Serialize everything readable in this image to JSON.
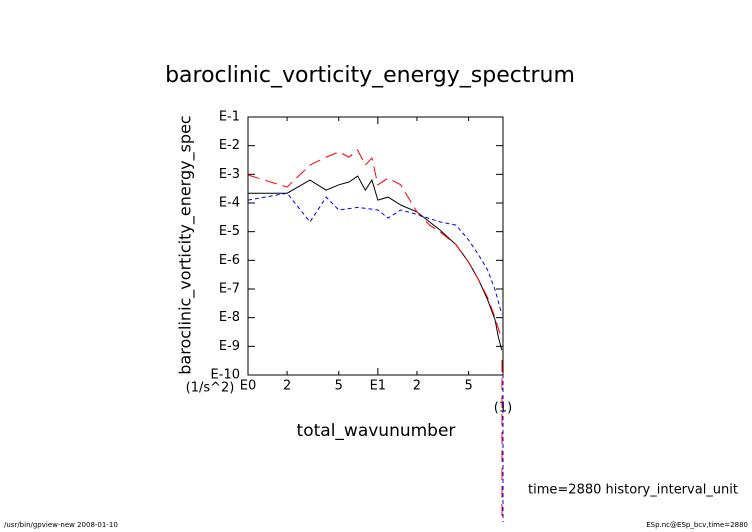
{
  "chart_data": {
    "type": "line",
    "title": "baroclinic_vorticity_energy_spectrum",
    "y_label": "baroclinic_vorticity_energy_spec",
    "y_unit": "(1/s^2)",
    "x_label": "total_wavunumber",
    "x_unit": "(1)",
    "log_x": true,
    "log_y": true,
    "xlim": [
      1,
      92
    ],
    "ylim": [
      1e-10,
      0.1
    ],
    "xticks": [
      {
        "value": 1,
        "label": "E0"
      },
      2,
      5,
      {
        "value": 10,
        "label": "E1"
      },
      2,
      5
    ],
    "xtick_values": [
      1,
      2,
      5,
      10,
      20,
      50
    ],
    "yticks": [
      {
        "value": 0.1,
        "label": "E-1"
      },
      {
        "value": 0.01,
        "label": "E-2"
      },
      {
        "value": 0.001,
        "label": "E-3"
      },
      {
        "value": 0.0001,
        "label": "E-4"
      },
      {
        "value": 1e-05,
        "label": "E-5"
      },
      {
        "value": 1e-06,
        "label": "E-6"
      },
      {
        "value": 1e-07,
        "label": "E-7"
      },
      {
        "value": 1e-08,
        "label": "E-8"
      },
      {
        "value": 1e-09,
        "label": "E-9"
      },
      {
        "value": 1e-10,
        "label": "E-10"
      }
    ],
    "series": [
      {
        "color": "#000000",
        "dash": "none",
        "x": [
          1,
          2,
          3,
          4,
          5,
          6,
          7,
          8,
          9,
          10,
          12,
          15,
          20,
          25,
          30,
          40,
          50,
          60,
          70,
          80,
          85,
          90
        ],
        "values": [
          0.00022,
          0.00022,
          0.00063,
          0.00028,
          0.00043,
          0.00054,
          0.00087,
          0.00028,
          0.00063,
          0.000126,
          0.00016,
          8.5e-05,
          4.9e-05,
          2.2e-05,
          1.15e-05,
          3.5e-06,
          8.7e-07,
          2e-07,
          4.2e-08,
          8.3e-09,
          2e-09,
          7.4e-10
        ]
      },
      {
        "color": "#ff0000",
        "dash": "12,6",
        "x": [
          1,
          2,
          3,
          4,
          5,
          6,
          7,
          8,
          9,
          10,
          12,
          15,
          20,
          25,
          30,
          40,
          50,
          60,
          70,
          80,
          90
        ],
        "values": [
          0.00095,
          0.00036,
          0.0021,
          0.004,
          0.006,
          0.004,
          0.007,
          0.0021,
          0.0037,
          0.00043,
          0.00074,
          0.00043,
          4.9e-05,
          1.7e-05,
          1e-05,
          3.5e-06,
          8.7e-07,
          2e-07,
          5e-08,
          1e-08,
          1.7e-09
        ]
      },
      {
        "color": "#0000ff",
        "dash": "4,3",
        "x": [
          1,
          2,
          3,
          4,
          5,
          7,
          10,
          12,
          15,
          20,
          30,
          40,
          50,
          60,
          70,
          80,
          90
        ],
        "values": [
          0.000126,
          0.00022,
          2.2e-05,
          0.00016,
          5.7e-05,
          7e-05,
          5.7e-05,
          3e-05,
          5.7e-05,
          4e-05,
          2.2e-05,
          1.7e-05,
          5.1e-06,
          1.5e-06,
          4.6e-07,
          9.3e-08,
          1.3e-08
        ]
      }
    ],
    "time_note": "time=2880 history_interval_unit",
    "footer_left": "/usr/bin/gpview-new  2008-01-10",
    "footer_right": "ESp.nc@ESp_bcv,time=2880"
  }
}
